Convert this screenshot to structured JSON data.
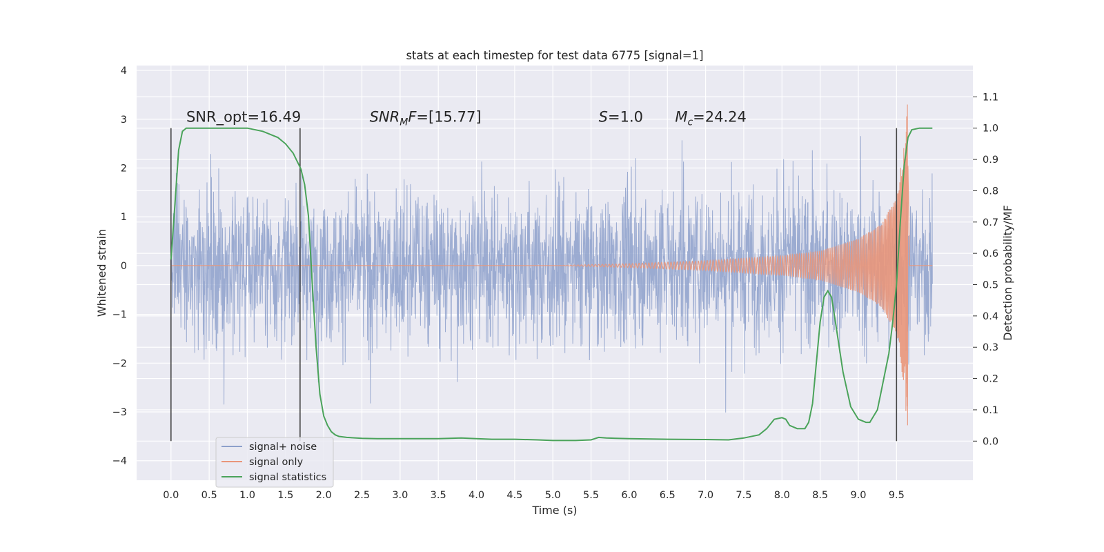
{
  "chart_data": {
    "type": "line",
    "title": "stats at each timestep for test data 6775 [signal=1]",
    "xlabel": "Time (s)",
    "ylabel": "Whitened strain",
    "y2label": "Detection probability/MF",
    "xlim": [
      -0.45,
      10.5
    ],
    "ylim": [
      -4.4,
      4.1
    ],
    "y2lim": [
      -0.125,
      1.2
    ],
    "x_ticks": [
      0.0,
      0.5,
      1.0,
      1.5,
      2.0,
      2.5,
      3.0,
      3.5,
      4.0,
      4.5,
      5.0,
      5.5,
      6.0,
      6.5,
      7.0,
      7.5,
      8.0,
      8.5,
      9.0,
      9.5
    ],
    "x_tick_labels": [
      "0.0",
      "0.5",
      "1.0",
      "1.5",
      "2.0",
      "2.5",
      "3.0",
      "3.5",
      "4.0",
      "4.5",
      "5.0",
      "5.5",
      "6.0",
      "6.5",
      "7.0",
      "7.5",
      "8.0",
      "8.5",
      "9.0",
      "9.5"
    ],
    "y_ticks": [
      -4,
      -3,
      -2,
      -1,
      0,
      1,
      2,
      3,
      4
    ],
    "y_tick_labels": [
      "−4",
      "−3",
      "−2",
      "−1",
      "0",
      "1",
      "2",
      "3",
      "4"
    ],
    "y2_ticks": [
      0.0,
      0.1,
      0.2,
      0.3,
      0.4,
      0.5,
      0.6,
      0.7,
      0.8,
      0.9,
      1.0,
      1.1
    ],
    "y2_tick_labels": [
      "0.0",
      "0.1",
      "0.2",
      "0.3",
      "0.4",
      "0.5",
      "0.6",
      "0.7",
      "0.8",
      "0.9",
      "1.0",
      "1.1"
    ],
    "grid": true,
    "legend_position": "lower-left",
    "series": [
      {
        "name": "signal+ noise",
        "color": "#8da0cb",
        "axis": "left",
        "x_range": [
          0.0,
          9.97
        ],
        "typical_band": [
          -1.7,
          1.7
        ],
        "extremes": [
          -4.0,
          3.7
        ]
      },
      {
        "name": "signal only",
        "color": "#e9967a",
        "axis": "left",
        "x_range": [
          0.0,
          9.97
        ],
        "envelope": {
          "t": [
            0.0,
            5.0,
            6.0,
            7.0,
            8.0,
            8.5,
            9.0,
            9.3,
            9.5,
            9.6,
            9.65,
            9.67,
            9.97
          ],
          "amp": [
            0.0,
            0.0,
            0.04,
            0.1,
            0.2,
            0.3,
            0.55,
            0.85,
            1.4,
            2.5,
            3.6,
            0.1,
            0.0
          ]
        },
        "chirp_end_time": 9.65
      },
      {
        "name": "signal statistics",
        "color": "#4aa35a",
        "axis": "right",
        "x": [
          0.0,
          0.05,
          0.1,
          0.15,
          0.2,
          0.3,
          0.5,
          1.0,
          1.2,
          1.4,
          1.5,
          1.6,
          1.7,
          1.75,
          1.8,
          1.85,
          1.9,
          1.95,
          2.0,
          2.05,
          2.1,
          2.15,
          2.2,
          2.3,
          2.5,
          2.7,
          3.0,
          3.5,
          3.8,
          4.0,
          4.2,
          4.5,
          4.8,
          5.0,
          5.3,
          5.5,
          5.6,
          5.7,
          6.0,
          6.5,
          7.0,
          7.3,
          7.5,
          7.7,
          7.8,
          7.9,
          8.0,
          8.05,
          8.1,
          8.2,
          8.3,
          8.35,
          8.4,
          8.45,
          8.5,
          8.55,
          8.6,
          8.65,
          8.7,
          8.8,
          8.9,
          9.0,
          9.1,
          9.15,
          9.2,
          9.25,
          9.3,
          9.4,
          9.45,
          9.5,
          9.55,
          9.6,
          9.65,
          9.7,
          9.8,
          9.97
        ],
        "y": [
          0.58,
          0.75,
          0.93,
          0.99,
          1.0,
          1.0,
          1.0,
          1.0,
          0.99,
          0.97,
          0.95,
          0.92,
          0.87,
          0.82,
          0.72,
          0.5,
          0.3,
          0.15,
          0.08,
          0.05,
          0.03,
          0.02,
          0.015,
          0.012,
          0.009,
          0.008,
          0.008,
          0.008,
          0.01,
          0.008,
          0.006,
          0.006,
          0.004,
          0.002,
          0.002,
          0.004,
          0.012,
          0.01,
          0.008,
          0.006,
          0.005,
          0.004,
          0.01,
          0.02,
          0.04,
          0.07,
          0.075,
          0.07,
          0.05,
          0.04,
          0.04,
          0.06,
          0.12,
          0.25,
          0.38,
          0.46,
          0.48,
          0.46,
          0.38,
          0.22,
          0.11,
          0.07,
          0.06,
          0.06,
          0.08,
          0.1,
          0.16,
          0.28,
          0.38,
          0.5,
          0.7,
          0.88,
          0.97,
          0.995,
          1.0,
          1.0
        ]
      }
    ],
    "vertical_markers": [
      {
        "x": 0.0,
        "color": "#444444"
      },
      {
        "x": 1.69,
        "color": "#444444"
      },
      {
        "x": 9.5,
        "color": "#444444"
      }
    ],
    "annotations": [
      {
        "id": "snr_opt",
        "text": "SNR_opt=16.49",
        "x": 0.2,
        "y2": 1.02
      },
      {
        "id": "snr_mf",
        "text": "=[15.77]",
        "italic_prefix": "SNR",
        "subscript": "M",
        "italic_suffix": "F",
        "x": 2.6,
        "y2": 1.02
      },
      {
        "id": "s_val",
        "text": "=1.0",
        "italic_prefix": "S",
        "x": 5.6,
        "y2": 1.02
      },
      {
        "id": "mc_val",
        "text": "=24.24",
        "italic_prefix": "M",
        "subscript": "c",
        "x": 6.6,
        "y2": 1.02
      }
    ]
  }
}
